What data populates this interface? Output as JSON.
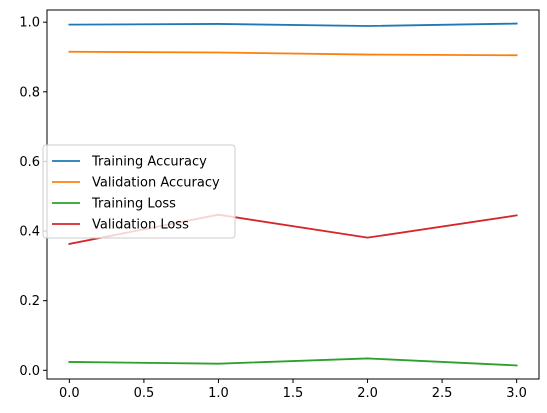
{
  "chart_data": {
    "type": "line",
    "title": "",
    "xlabel": "",
    "ylabel": "",
    "xlim": [
      -0.15,
      3.15
    ],
    "ylim": [
      -0.025,
      1.035
    ],
    "grid": false,
    "legend_placement": "center-left",
    "x": [
      0,
      1,
      2,
      3
    ],
    "x_ticks": [
      0,
      0.5,
      1,
      1.5,
      2,
      2.5,
      3
    ],
    "x_tick_labels": [
      "0.0",
      "0.5",
      "1.0",
      "1.5",
      "2.0",
      "2.5",
      "3.0"
    ],
    "y_ticks": [
      0,
      0.2,
      0.4,
      0.6,
      0.8,
      1.0
    ],
    "y_tick_labels": [
      "0.0",
      "0.2",
      "0.4",
      "0.6",
      "0.8",
      "1.0"
    ],
    "series": [
      {
        "name": "Training Accuracy",
        "color": "#1f77b4",
        "values": [
          0.993,
          0.995,
          0.989,
          0.996
        ]
      },
      {
        "name": "Validation Accuracy",
        "color": "#ff7f0e",
        "values": [
          0.915,
          0.913,
          0.907,
          0.905
        ]
      },
      {
        "name": "Training Loss",
        "color": "#2ca02c",
        "values": [
          0.024,
          0.019,
          0.034,
          0.014
        ]
      },
      {
        "name": "Validation Loss",
        "color": "#d62728",
        "values": [
          0.363,
          0.447,
          0.381,
          0.445
        ]
      }
    ]
  }
}
